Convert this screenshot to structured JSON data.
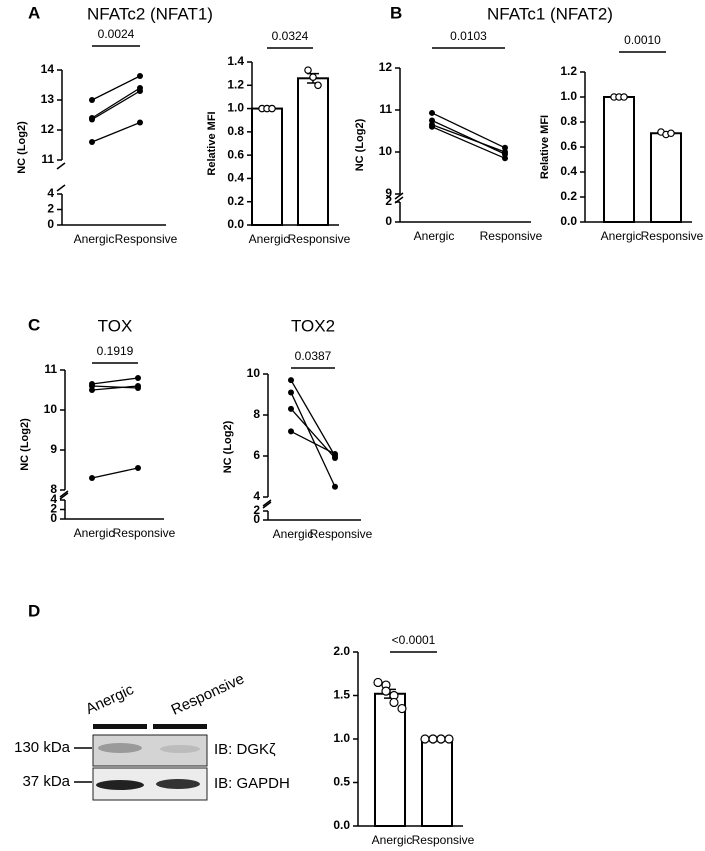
{
  "panels": [
    {
      "label": "A",
      "title": "NFATc2 (NFAT1)"
    },
    {
      "label": "B",
      "title": "NFATc1 (NFAT2)"
    },
    {
      "label": "C"
    },
    {
      "label": "D"
    }
  ],
  "blot": {
    "lanes": [
      "Anergic",
      "Responsive"
    ],
    "markers": [
      "130 kDa",
      "37 kDa"
    ],
    "probes": [
      "IB: DGKζ",
      "IB: GAPDH"
    ]
  },
  "chart_data": [
    {
      "type": "line",
      "ylabel": "NC (Log2)",
      "categories": [
        "Anergic",
        "Responsive"
      ],
      "color": "#000000",
      "series": [
        {
          "values": [
            13.0,
            13.8
          ]
        },
        {
          "values": [
            12.4,
            13.4
          ]
        },
        {
          "values": [
            12.35,
            13.3
          ]
        },
        {
          "values": [
            11.6,
            12.25
          ]
        }
      ],
      "ylim": [
        0,
        14
      ],
      "axis_break": [
        4,
        11
      ],
      "yticks": [
        0,
        2,
        4,
        11,
        12,
        13,
        14
      ],
      "annotation": "0.0024"
    },
    {
      "type": "bar",
      "ylabel": "Relative MFI",
      "categories": [
        "Anergic",
        "Responsive"
      ],
      "color": "#ffffff",
      "values": [
        1.0,
        1.26
      ],
      "errors": [
        0.005,
        0.04
      ],
      "points": [
        [
          1,
          1,
          1
        ],
        [
          1.33,
          1.27,
          1.2
        ]
      ],
      "ylim": [
        0,
        1.4
      ],
      "yticks": [
        {
          "value": 0,
          "label": "0.0"
        },
        0.2,
        0.4,
        0.6,
        0.8,
        {
          "value": 1,
          "label": "1.0"
        },
        1.2,
        1.4
      ],
      "annotation": "0.0324"
    },
    {
      "type": "line",
      "ylabel": "NC (Log2)",
      "categories": [
        "Anergic",
        "Responsive"
      ],
      "color": "#000000",
      "series": [
        {
          "values": [
            10.93,
            10.1
          ]
        },
        {
          "values": [
            10.75,
            9.95
          ]
        },
        {
          "values": [
            10.65,
            10.0
          ]
        },
        {
          "values": [
            10.6,
            9.85
          ]
        }
      ],
      "ylim": [
        0,
        12
      ],
      "axis_break": [
        2,
        9
      ],
      "yticks": [
        0,
        2,
        9,
        10,
        11,
        12
      ],
      "annotation": "0.0103"
    },
    {
      "type": "bar",
      "ylabel": "Relative MFI",
      "categories": [
        "Anergic",
        "Responsive"
      ],
      "color": "#ffffff",
      "values": [
        1.0,
        0.71
      ],
      "errors": [
        0.005,
        0.01
      ],
      "points": [
        [
          1,
          1,
          1
        ],
        [
          0.72,
          0.7,
          0.71
        ]
      ],
      "ylim": [
        0,
        1.2
      ],
      "yticks": [
        {
          "value": 0,
          "label": "0.0"
        },
        0.2,
        0.4,
        0.6,
        0.8,
        {
          "value": 1,
          "label": "1.0"
        },
        1.2
      ],
      "annotation": "0.0010"
    },
    {
      "type": "line",
      "title": "TOX",
      "ylabel": "NC (Log2)",
      "categories": [
        "Anergic",
        "Responsive"
      ],
      "color": "#000000",
      "series": [
        {
          "values": [
            10.65,
            10.8
          ]
        },
        {
          "values": [
            10.6,
            10.55
          ]
        },
        {
          "values": [
            10.5,
            10.6
          ]
        },
        {
          "values": [
            8.3,
            8.55
          ]
        }
      ],
      "ylim": [
        0,
        11
      ],
      "axis_break": [
        4,
        8
      ],
      "yticks": [
        0,
        2,
        4,
        8,
        9,
        10,
        11
      ],
      "annotation": "0.1919"
    },
    {
      "type": "line",
      "title": "TOX2",
      "ylabel": "NC (Log2)",
      "categories": [
        "Anergic",
        "Responsive"
      ],
      "color": "#000000",
      "series": [
        {
          "values": [
            9.7,
            6.0
          ]
        },
        {
          "values": [
            9.1,
            4.5
          ]
        },
        {
          "values": [
            8.3,
            5.9
          ]
        },
        {
          "values": [
            7.2,
            6.1
          ]
        }
      ],
      "ylim": [
        0,
        10
      ],
      "axis_break": [
        2,
        4
      ],
      "yticks": [
        0,
        2,
        4,
        6,
        8,
        10
      ],
      "annotation": "0.0387"
    },
    {
      "type": "bar",
      "categories": [
        "Anergic",
        "Responsive"
      ],
      "color": "#ffffff",
      "values": [
        1.52,
        1.0
      ],
      "errors": [
        0.05,
        0.005
      ],
      "points": [
        [
          1.65,
          1.62,
          1.55,
          1.5,
          1.42,
          1.35
        ],
        [
          1,
          1,
          1,
          1,
          1,
          1
        ]
      ],
      "ylim": [
        0,
        2.0
      ],
      "yticks": [
        {
          "value": 0,
          "label": "0.0"
        },
        0.5,
        {
          "value": 1,
          "label": "1.0"
        },
        1.5,
        {
          "value": 2,
          "label": "2.0"
        }
      ],
      "annotation": "<0.0001"
    }
  ]
}
